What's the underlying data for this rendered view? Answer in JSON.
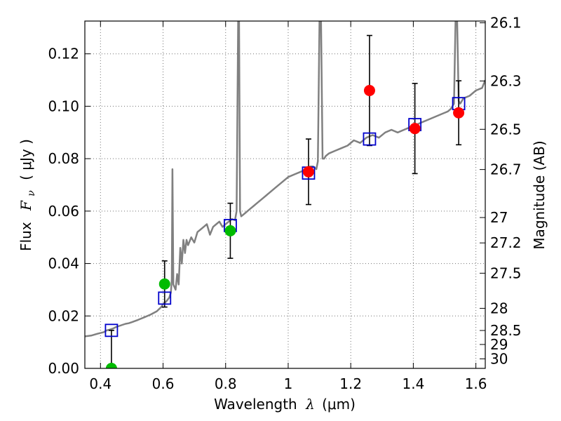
{
  "chart_data": {
    "type": "scatter",
    "xlabel": "Wavelength",
    "xlabel_symbol": "λ",
    "xlabel_unit": "(μm)",
    "ylabel": "Flux",
    "ylabel_symbol": "F",
    "ylabel_subscript": "ν",
    "ylabel_unit": "( μJy )",
    "y2label": "Magnitude (AB)",
    "xlim": [
      0.35,
      1.63
    ],
    "ylim": [
      0.0,
      0.1325
    ],
    "xticks": [
      0.4,
      0.6,
      0.8,
      1.0,
      1.2,
      1.4,
      1.6
    ],
    "xtick_labels": [
      "0.4",
      "0.6",
      "0.8",
      "1",
      "1.2",
      "1.4",
      "1.6"
    ],
    "yticks": [
      0.0,
      0.02,
      0.04,
      0.06,
      0.08,
      0.1,
      0.12
    ],
    "ytick_labels": [
      "0.00",
      "0.02",
      "0.04",
      "0.06",
      "0.08",
      "0.10",
      "0.12"
    ],
    "y2ticks": [
      26.1,
      26.3,
      26.5,
      26.7,
      27,
      27.2,
      27.5,
      28,
      28.5,
      29,
      30
    ],
    "y2tick_labels": [
      "26.1",
      "26.3",
      "26.5",
      "26.7",
      "27",
      "27.2",
      "27.5",
      "28",
      "28.5",
      "29",
      "30"
    ],
    "grid": true,
    "colors": {
      "sed": "#808080",
      "red_points": "#ff0000",
      "green_points": "#00bb00",
      "model_boxes": "#0000cc",
      "error_bars": "#000000"
    },
    "series": [
      {
        "kind": "line",
        "color": "#808080",
        "x": [
          0.35,
          0.37,
          0.39,
          0.41,
          0.42,
          0.43,
          0.44,
          0.45,
          0.46,
          0.47,
          0.48,
          0.49,
          0.5,
          0.52,
          0.54,
          0.56,
          0.58,
          0.595,
          0.6,
          0.61,
          0.62,
          0.625,
          0.628,
          0.63,
          0.633,
          0.64,
          0.645,
          0.65,
          0.655,
          0.66,
          0.665,
          0.67,
          0.675,
          0.68,
          0.69,
          0.7,
          0.71,
          0.72,
          0.73,
          0.74,
          0.75,
          0.76,
          0.77,
          0.78,
          0.79,
          0.8,
          0.81,
          0.82,
          0.83,
          0.835,
          0.84,
          0.843,
          0.846,
          0.85,
          0.86,
          0.87,
          0.88,
          0.89,
          0.9,
          0.92,
          0.94,
          0.96,
          0.98,
          1.0,
          1.02,
          1.04,
          1.06,
          1.07,
          1.08,
          1.09,
          1.095,
          1.1,
          1.105,
          1.11,
          1.115,
          1.12,
          1.13,
          1.15,
          1.17,
          1.19,
          1.21,
          1.23,
          1.25,
          1.27,
          1.29,
          1.31,
          1.33,
          1.35,
          1.37,
          1.39,
          1.41,
          1.43,
          1.45,
          1.47,
          1.49,
          1.51,
          1.52,
          1.53,
          1.535,
          1.54,
          1.545,
          1.55,
          1.56,
          1.58,
          1.6,
          1.62,
          1.63
        ],
        "y": [
          0.0122,
          0.0125,
          0.0132,
          0.0138,
          0.0145,
          0.0148,
          0.0152,
          0.0158,
          0.0162,
          0.0166,
          0.017,
          0.0172,
          0.0176,
          0.0185,
          0.0195,
          0.0205,
          0.0218,
          0.0235,
          0.0245,
          0.0255,
          0.027,
          0.029,
          0.034,
          0.076,
          0.032,
          0.03,
          0.036,
          0.032,
          0.046,
          0.04,
          0.049,
          0.044,
          0.049,
          0.047,
          0.05,
          0.048,
          0.052,
          0.053,
          0.054,
          0.055,
          0.051,
          0.054,
          0.055,
          0.056,
          0.054,
          0.055,
          0.056,
          0.057,
          0.0565,
          0.06,
          0.1325,
          0.1325,
          0.06,
          0.058,
          0.059,
          0.06,
          0.061,
          0.062,
          0.063,
          0.065,
          0.067,
          0.069,
          0.071,
          0.073,
          0.074,
          0.075,
          0.076,
          0.077,
          0.077,
          0.076,
          0.079,
          0.1325,
          0.1325,
          0.08,
          0.08,
          0.081,
          0.082,
          0.083,
          0.084,
          0.085,
          0.087,
          0.086,
          0.088,
          0.089,
          0.088,
          0.09,
          0.091,
          0.09,
          0.091,
          0.092,
          0.093,
          0.094,
          0.095,
          0.096,
          0.097,
          0.098,
          0.099,
          0.101,
          0.1325,
          0.1325,
          0.102,
          0.101,
          0.103,
          0.104,
          0.106,
          0.107,
          0.11
        ]
      },
      {
        "kind": "model-boxes",
        "color": "#0000cc",
        "x": [
          0.435,
          0.605,
          0.815,
          1.065,
          1.26,
          1.405,
          1.545
        ],
        "y": [
          0.0145,
          0.0268,
          0.0545,
          0.0745,
          0.0875,
          0.093,
          0.101
        ]
      },
      {
        "kind": "points",
        "color": "#ff0000",
        "x": [
          1.065,
          1.26,
          1.405,
          1.545
        ],
        "y": [
          0.075,
          0.106,
          0.0915,
          0.0975
        ],
        "yerr": [
          0.0125,
          0.021,
          0.0172,
          0.0122
        ]
      },
      {
        "kind": "points",
        "color": "#00bb00",
        "x": [
          0.435,
          0.605,
          0.815
        ],
        "y": [
          0.0,
          0.0322,
          0.0525
        ],
        "yerr": [
          0.0145,
          0.0088,
          0.0105
        ]
      }
    ]
  }
}
